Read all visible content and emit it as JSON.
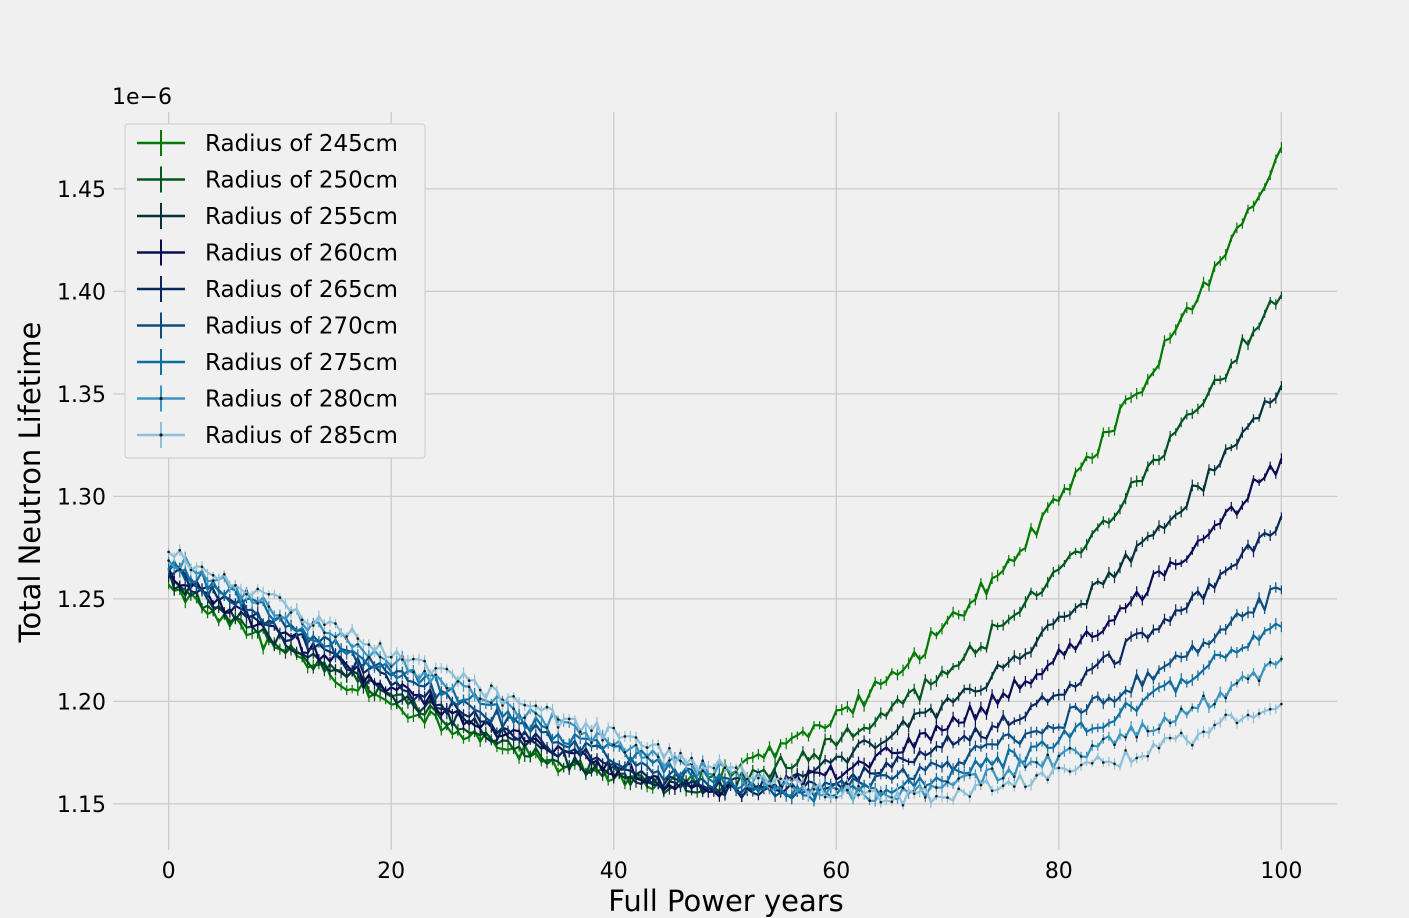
{
  "chart_data": {
    "type": "line",
    "title": "",
    "xlabel": "Full Power years",
    "ylabel": "Total Neutron Lifetime",
    "y_offset_label": "1e−6",
    "xlim": [
      -5,
      105
    ],
    "ylim": [
      1.1275,
      1.4875
    ],
    "x_ticks": [
      0,
      20,
      40,
      60,
      80,
      100
    ],
    "y_ticks": [
      1.15,
      1.2,
      1.25,
      1.3,
      1.35,
      1.4,
      1.45
    ],
    "y_tick_labels": [
      "1.15",
      "1.20",
      "1.25",
      "1.30",
      "1.35",
      "1.40",
      "1.45"
    ],
    "grid": true,
    "legend_position": "top-left",
    "error_bars": true,
    "x_range": [
      0,
      100
    ],
    "x_step": 0.5,
    "noise_amplitude": 0.004,
    "series": [
      {
        "name": "Radius of 245cm",
        "color": "#007a00",
        "start": 1.255,
        "min_x": 44,
        "min_y": 1.16,
        "end": 1.468,
        "markers": false
      },
      {
        "name": "Radius of 250cm",
        "color": "#00561e",
        "start": 1.258,
        "min_x": 46,
        "min_y": 1.159,
        "end": 1.4,
        "markers": false
      },
      {
        "name": "Radius of 255cm",
        "color": "#04333a",
        "start": 1.26,
        "min_x": 48,
        "min_y": 1.158,
        "end": 1.352,
        "markers": false
      },
      {
        "name": "Radius of 260cm",
        "color": "#0b0b54",
        "start": 1.262,
        "min_x": 50,
        "min_y": 1.157,
        "end": 1.318,
        "markers": false
      },
      {
        "name": "Radius of 265cm",
        "color": "#08275e",
        "start": 1.264,
        "min_x": 52,
        "min_y": 1.156,
        "end": 1.286,
        "markers": false
      },
      {
        "name": "Radius of 270cm",
        "color": "#0a4d82",
        "start": 1.266,
        "min_x": 55,
        "min_y": 1.156,
        "end": 1.254,
        "markers": false
      },
      {
        "name": "Radius of 275cm",
        "color": "#0f6ea0",
        "start": 1.268,
        "min_x": 58,
        "min_y": 1.155,
        "end": 1.24,
        "markers": false
      },
      {
        "name": "Radius of 280cm",
        "color": "#3a94c0",
        "start": 1.271,
        "min_x": 61,
        "min_y": 1.155,
        "end": 1.218,
        "markers": true
      },
      {
        "name": "Radius of 285cm",
        "color": "#8ec0d8",
        "start": 1.274,
        "min_x": 64,
        "min_y": 1.154,
        "end": 1.2,
        "markers": true
      }
    ]
  }
}
